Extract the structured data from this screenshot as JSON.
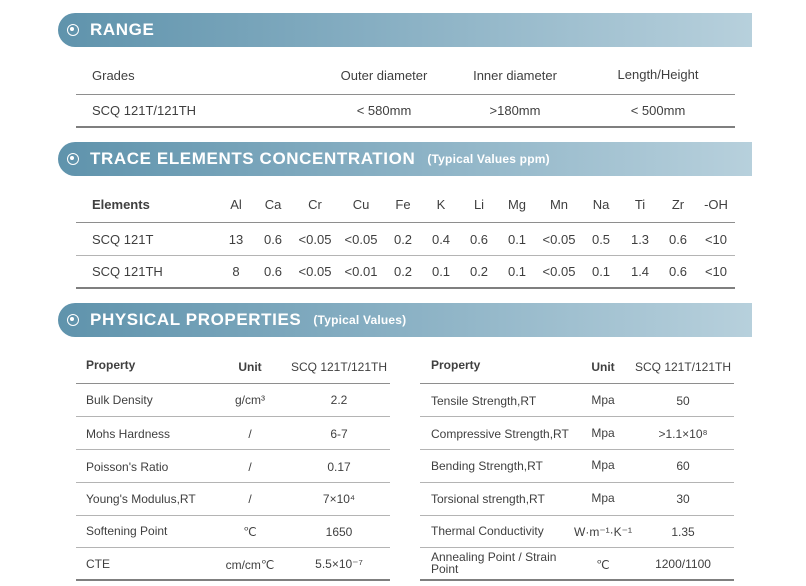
{
  "range": {
    "title": "RANGE",
    "headers": [
      "Grades",
      "Outer diameter",
      "Inner diameter",
      "Length/Height"
    ],
    "row": [
      "SCQ 121T/121TH",
      "< 580mm",
      ">180mm",
      "< 500mm"
    ]
  },
  "trace": {
    "title": "TRACE ELEMENTS CONCENTRATION",
    "subtitle": "(Typical Values ppm)",
    "headers": [
      "Elements",
      "Al",
      "Ca",
      "Cr",
      "Cu",
      "Fe",
      "K",
      "Li",
      "Mg",
      "Mn",
      "Na",
      "Ti",
      "Zr",
      "-OH"
    ],
    "rows": [
      [
        "SCQ 121T",
        "13",
        "0.6",
        "<0.05",
        "<0.05",
        "0.2",
        "0.4",
        "0.6",
        "0.1",
        "<0.05",
        "0.5",
        "1.3",
        "0.6",
        "<10"
      ],
      [
        "SCQ 121TH",
        "8",
        "0.6",
        "<0.05",
        "<0.01",
        "0.2",
        "0.1",
        "0.2",
        "0.1",
        "<0.05",
        "0.1",
        "1.4",
        "0.6",
        "<10"
      ]
    ]
  },
  "physical": {
    "title": "PHYSICAL PROPERTIES",
    "subtitle": "(Typical Values)",
    "left": {
      "headers": [
        "Property",
        "Unit",
        "SCQ 121T/121TH"
      ],
      "rows": [
        {
          "property": "Bulk Density",
          "unit": "g/cm³",
          "value": "2.2"
        },
        {
          "property": "Mohs Hardness",
          "unit": "/",
          "value": "6-7"
        },
        {
          "property": "Poisson's Ratio",
          "unit": "/",
          "value": "0.17"
        },
        {
          "property": "Young's Modulus,RT",
          "unit": "/",
          "value": "7×10⁴"
        },
        {
          "property": "Softening Point",
          "unit": "℃",
          "value": "1650"
        },
        {
          "property": "CTE",
          "unit": "cm/cm℃",
          "value": "5.5×10⁻⁷"
        }
      ]
    },
    "right": {
      "headers": [
        "Property",
        "Unit",
        "SCQ 121T/121TH"
      ],
      "rows": [
        {
          "property": "Tensile Strength,RT",
          "unit": "Mpa",
          "value": "50"
        },
        {
          "property": "Compressive Strength,RT",
          "unit": "Mpa",
          "value": ">1.1×10⁸"
        },
        {
          "property": "Bending Strength,RT",
          "unit": "Mpa",
          "value": "60"
        },
        {
          "property": "Torsional strength,RT",
          "unit": "Mpa",
          "value": "30"
        },
        {
          "property": "Thermal Conductivity",
          "unit": "W·m⁻¹·K⁻¹",
          "value": "1.35"
        },
        {
          "property": "Annealing Point / Strain Point",
          "unit": "℃",
          "value": "1200/1100"
        }
      ]
    }
  }
}
